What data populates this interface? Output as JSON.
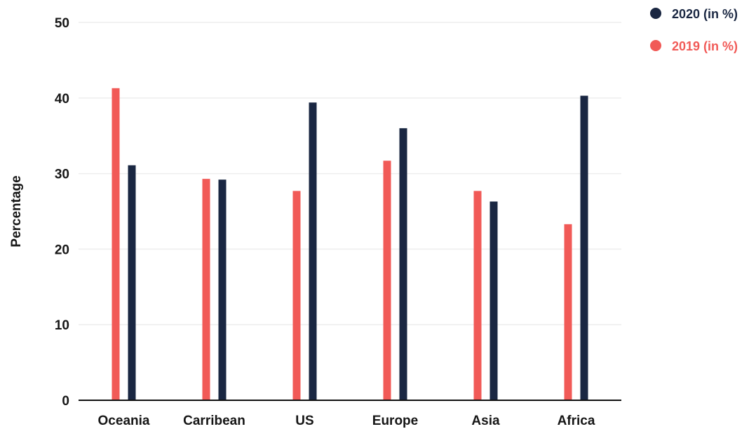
{
  "chart_data": {
    "type": "bar",
    "title": "",
    "xlabel": "",
    "ylabel": "Percentage",
    "ylim": [
      0,
      50
    ],
    "yticks": [
      0,
      10,
      20,
      30,
      40,
      50
    ],
    "grid": true,
    "legend_position": "top-right",
    "categories": [
      "Oceania",
      "Carribean",
      "US",
      "Europe",
      "Asia",
      "Africa"
    ],
    "series": [
      {
        "name": "2019 (in %)",
        "color": "#f15a57",
        "values": [
          41.3,
          29.3,
          27.7,
          31.7,
          27.7,
          23.3
        ]
      },
      {
        "name": "2020 (in %)",
        "color": "#1a2742",
        "values": [
          31.1,
          29.2,
          39.4,
          36.0,
          26.3,
          40.3
        ]
      }
    ],
    "legend_order": [
      1,
      0
    ]
  }
}
